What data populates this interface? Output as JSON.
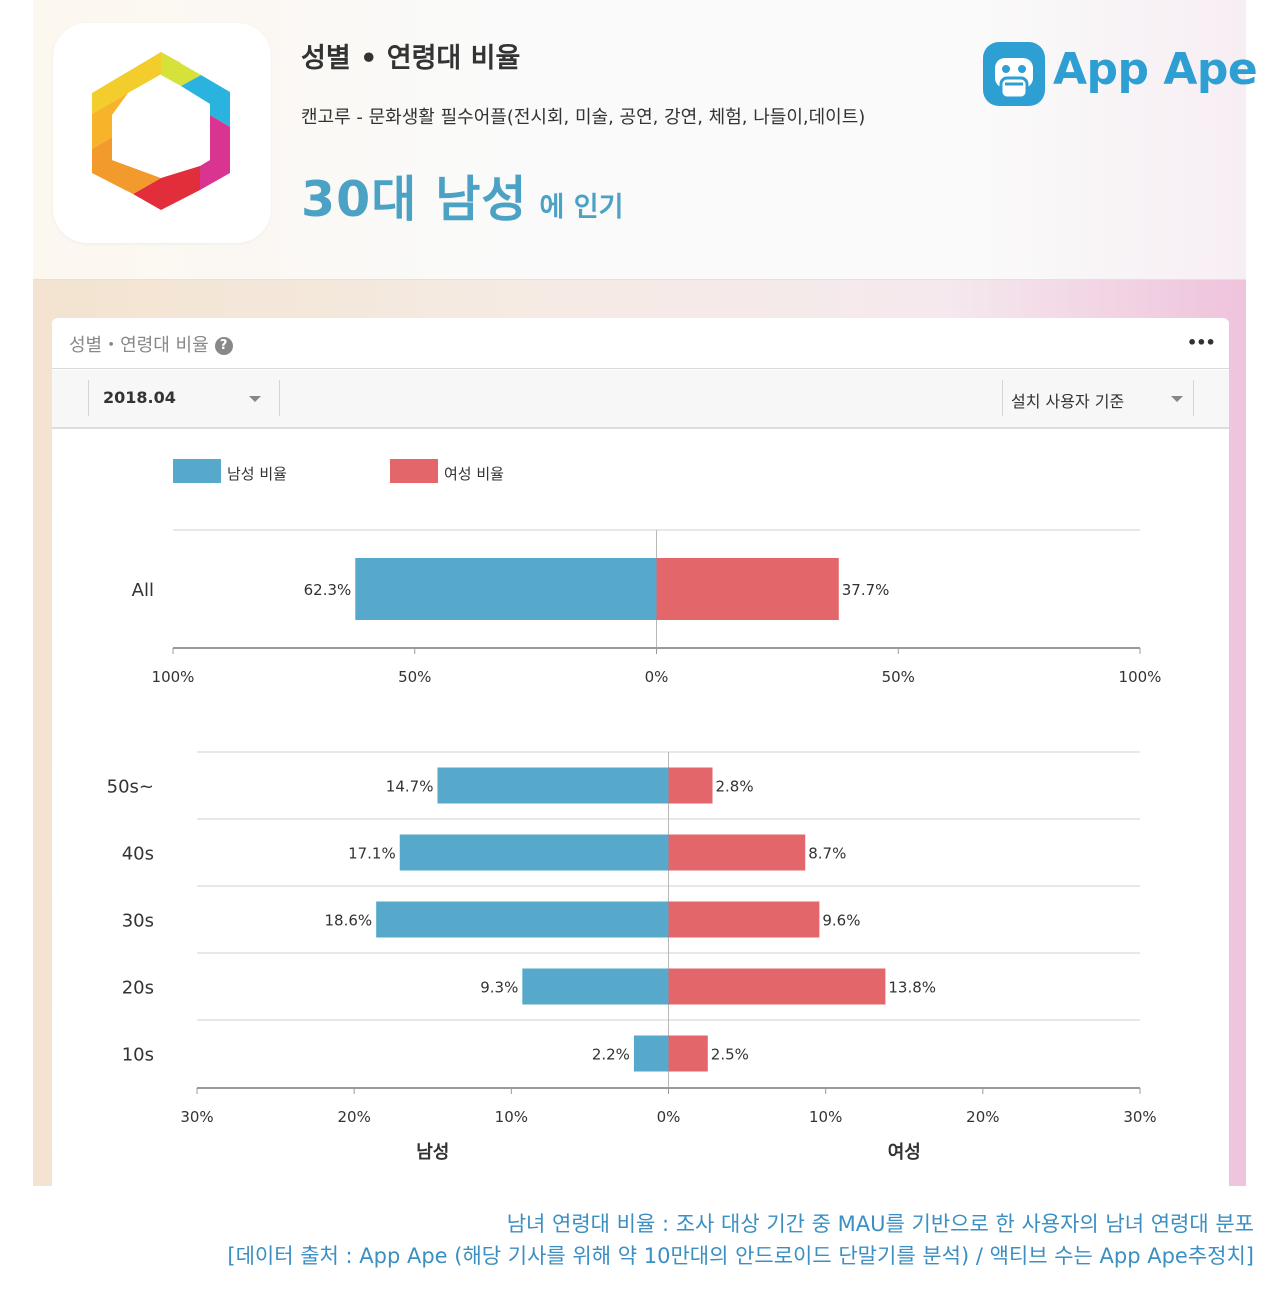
{
  "header": {
    "title": "성별 • 연령대 비율",
    "app_name": "캔고루 - 문화생활 필수어플(전시회, 미술, 공연, 강연, 체험, 나들이,데이트)",
    "popular_main": "30대 남성",
    "popular_suffix": "에 인기",
    "logo_text": "App Ape"
  },
  "card": {
    "title": "성별・연령대 비율",
    "help_label": "?",
    "more_label": "•••",
    "date_select": "2018.04",
    "basis_select": "설치 사용자 기준"
  },
  "legend": {
    "male": "남성 비율",
    "female": "여성 비율"
  },
  "colors": {
    "male": "#56a9cb",
    "female": "#e2666a",
    "accent": "#4ba2c5",
    "caption": "#3b8fc2"
  },
  "chart_data": [
    {
      "type": "bar",
      "orientation": "horizontal-diverging",
      "categories": [
        "All"
      ],
      "series": [
        {
          "name": "남성 비율",
          "values": [
            62.3
          ],
          "labels": [
            "62.3%"
          ]
        },
        {
          "name": "여성 비율",
          "values": [
            37.7
          ],
          "labels": [
            "37.7%"
          ]
        }
      ],
      "xlim": [
        -100,
        100
      ],
      "ticks": [
        -100,
        -50,
        0,
        50,
        100
      ],
      "tick_labels": [
        "100%",
        "50%",
        "0%",
        "50%",
        "100%"
      ]
    },
    {
      "type": "bar",
      "orientation": "horizontal-diverging",
      "categories": [
        "50s~",
        "40s",
        "30s",
        "20s",
        "10s"
      ],
      "series": [
        {
          "name": "남성 비율",
          "values": [
            14.7,
            17.1,
            18.6,
            9.3,
            2.2
          ],
          "labels": [
            "14.7%",
            "17.1%",
            "18.6%",
            "9.3%",
            "2.2%"
          ]
        },
        {
          "name": "여성 비율",
          "values": [
            2.8,
            8.7,
            9.6,
            13.8,
            2.5
          ],
          "labels": [
            "2.8%",
            "8.7%",
            "9.6%",
            "13.8%",
            "2.5%"
          ]
        }
      ],
      "xlim": [
        -30,
        30
      ],
      "ticks": [
        -30,
        -20,
        -10,
        0,
        10,
        20,
        30
      ],
      "tick_labels": [
        "30%",
        "20%",
        "10%",
        "0%",
        "10%",
        "20%",
        "30%"
      ],
      "xlabel_left": "남성",
      "xlabel_right": "여성"
    }
  ],
  "caption": {
    "line1": "남녀 연령대 비율 : 조사 대상 기간 중 MAU를 기반으로 한 사용자의 남녀 연령대 분포",
    "line2": "[데이터 출처 : App Ape (해당 기사를 위해 약 10만대의 안드로이드 단말기를 분석) / 액티브 수는 App Ape추정치]"
  }
}
